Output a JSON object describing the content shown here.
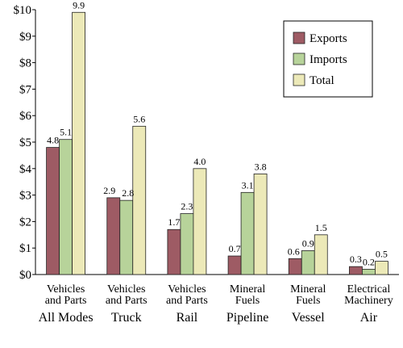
{
  "chart_data": {
    "type": "bar",
    "title": "",
    "xlabel": "",
    "ylabel": "",
    "ylim": [
      0,
      10
    ],
    "yticks": [
      "$0",
      "$1",
      "$2",
      "$3",
      "$4",
      "$5",
      "$6",
      "$7",
      "$8",
      "$9",
      "$10"
    ],
    "grid": false,
    "legend_position": "top-right",
    "groups": [
      {
        "category": [
          "Vehicles",
          "and Parts"
        ],
        "mode": "All Modes"
      },
      {
        "category": [
          "Vehicles",
          "and Parts"
        ],
        "mode": "Truck"
      },
      {
        "category": [
          "Vehicles",
          "and Parts"
        ],
        "mode": "Rail"
      },
      {
        "category": [
          "Mineral",
          "Fuels"
        ],
        "mode": "Pipeline"
      },
      {
        "category": [
          "Mineral",
          "Fuels"
        ],
        "mode": "Vessel"
      },
      {
        "category": [
          "Electrical",
          "Machinery"
        ],
        "mode": "Air"
      }
    ],
    "series": [
      {
        "name": "Exports",
        "color": "#9e5b64",
        "values": [
          4.8,
          2.9,
          1.7,
          0.7,
          0.6,
          0.3
        ]
      },
      {
        "name": "Imports",
        "color": "#b7d39a",
        "values": [
          5.1,
          2.8,
          2.3,
          3.1,
          0.9,
          0.2
        ]
      },
      {
        "name": "Total",
        "color": "#ece9b8",
        "values": [
          9.9,
          5.6,
          4.0,
          3.8,
          1.5,
          0.5
        ]
      }
    ]
  }
}
